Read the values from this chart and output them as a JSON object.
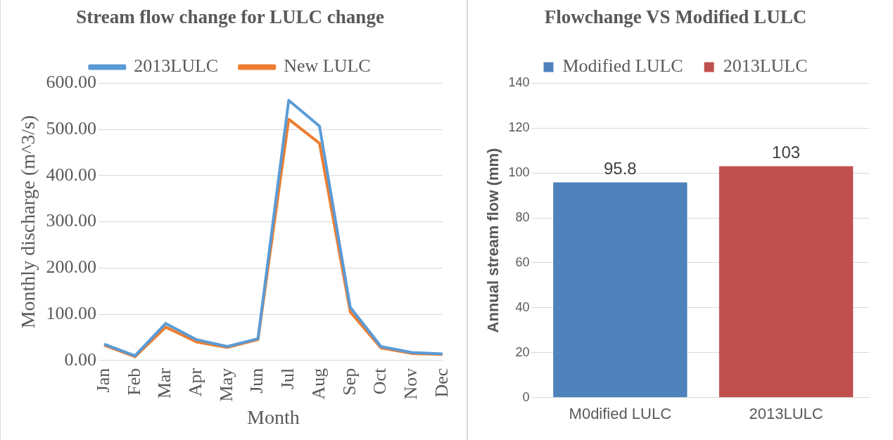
{
  "chart_data": [
    {
      "type": "line",
      "title": "Stream flow change for LULC change",
      "xlabel": "Month",
      "ylabel": "Monthly discharge (m^3/s)",
      "categories": [
        "Jan",
        "Feb",
        "Mar",
        "Apr",
        "May",
        "Jun",
        "Jul",
        "Aug",
        "Sep",
        "Oct",
        "Nov",
        "Dec"
      ],
      "series": [
        {
          "name": "2013LULC",
          "color": "#5b9bd5",
          "values": [
            35,
            10,
            80,
            45,
            30,
            47,
            563,
            507,
            115,
            30,
            17,
            14
          ]
        },
        {
          "name": "New LULC",
          "color": "#ed7d31",
          "values": [
            33,
            8,
            72,
            40,
            28,
            45,
            522,
            470,
            105,
            27,
            15,
            13
          ]
        }
      ],
      "ylim": [
        0,
        600
      ],
      "yticks": [
        {
          "value": 0,
          "label": "0.00"
        },
        {
          "value": 100,
          "label": "100.00"
        },
        {
          "value": 200,
          "label": "200.00"
        },
        {
          "value": 300,
          "label": "300.00"
        },
        {
          "value": 400,
          "label": "400.00"
        },
        {
          "value": 500,
          "label": "500.00"
        },
        {
          "value": 600,
          "label": "600.00"
        }
      ],
      "grid": "y",
      "legend": "top",
      "marker": "none",
      "line_style": "solid"
    },
    {
      "type": "bar",
      "title": "Flowchange VS Modified LULC",
      "ylabel": "Annual stream flow (mm)",
      "categories": [
        "M0dified LULC",
        "2013LULC"
      ],
      "series": [
        {
          "name": "Modified LULC",
          "color": "#4f81bd",
          "values": [
            95.8,
            null
          ]
        },
        {
          "name": "2013LULC",
          "color": "#c0504d",
          "values": [
            null,
            103
          ]
        }
      ],
      "ylim": [
        0,
        140
      ],
      "yticks": [
        0,
        20,
        40,
        60,
        80,
        100,
        120,
        140
      ],
      "grid": "y",
      "legend": "top",
      "data_labels": true
    }
  ]
}
